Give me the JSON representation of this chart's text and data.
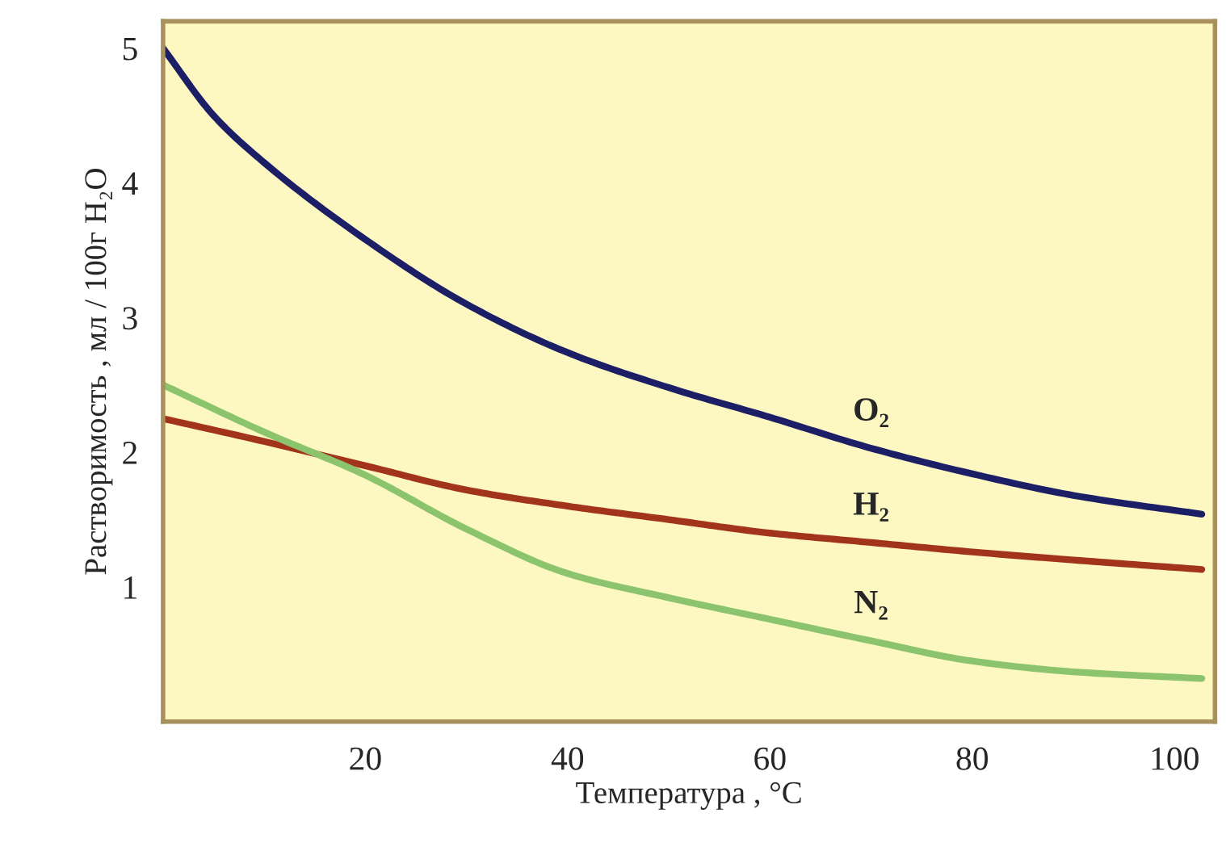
{
  "chart_data": {
    "type": "line",
    "xlabel": "Температура , °C",
    "ylabel": "Растворимость , мл / 100г H₂O",
    "xlim": [
      0,
      104
    ],
    "ylim": [
      0,
      5.2
    ],
    "xticks": [
      20,
      40,
      60,
      80,
      100
    ],
    "yticks": [
      1,
      2,
      3,
      4,
      5
    ],
    "grid": false,
    "legend": false,
    "marker": "none",
    "line_style": "solid",
    "series": [
      {
        "name": "O₂",
        "color": "#1c1f66",
        "x": [
          0,
          5,
          10,
          20,
          30,
          40,
          50,
          60,
          70,
          80,
          90,
          102.7
        ],
        "values": [
          5.0,
          4.5,
          4.15,
          3.58,
          3.1,
          2.74,
          2.48,
          2.26,
          2.03,
          1.84,
          1.68,
          1.54
        ]
      },
      {
        "name": "H₂",
        "color": "#a3341c",
        "x": [
          0,
          10,
          20,
          30,
          40,
          50,
          60,
          70,
          80,
          90,
          102.7
        ],
        "values": [
          2.25,
          2.08,
          1.9,
          1.72,
          1.6,
          1.5,
          1.4,
          1.33,
          1.26,
          1.2,
          1.13
        ]
      },
      {
        "name": "N₂",
        "color": "#8cc46e",
        "x": [
          0,
          10,
          20,
          30,
          40,
          50,
          60,
          70,
          80,
          90,
          102.7
        ],
        "values": [
          2.5,
          2.15,
          1.83,
          1.43,
          1.1,
          0.92,
          0.76,
          0.6,
          0.45,
          0.37,
          0.32
        ]
      }
    ]
  }
}
